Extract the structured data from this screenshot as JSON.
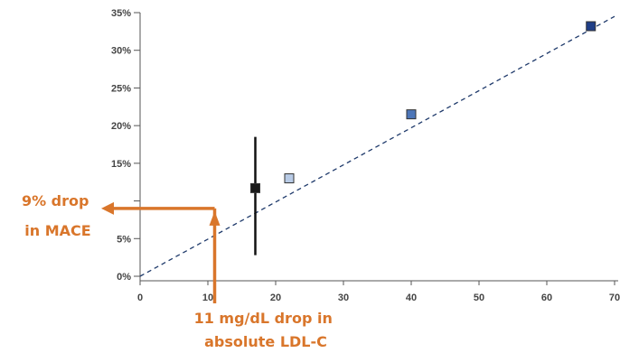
{
  "colors": {
    "accent": "#d9762b",
    "axis": "#555555",
    "trendline": "#1f3a6b",
    "error_bar": "#111111"
  },
  "chart_data": {
    "type": "scatter",
    "title": "",
    "xlabel": "",
    "ylabel": "",
    "xlim": [
      0,
      70
    ],
    "ylim": [
      0,
      35
    ],
    "grid": false,
    "legend": "none",
    "x_ticks": [
      0,
      10,
      20,
      30,
      40,
      50,
      60,
      70
    ],
    "x_tick_labels": [
      "0",
      "10",
      "20",
      "30",
      "40",
      "50",
      "60",
      "70"
    ],
    "y_ticks": [
      0,
      5,
      10,
      15,
      20,
      25,
      30,
      35
    ],
    "y_tick_labels": [
      "0%",
      "5%",
      "",
      "15%",
      "20%",
      "25%",
      "30%",
      "35%"
    ],
    "points": [
      {
        "x": 17,
        "y": 11.7,
        "color": "#1a1a1a",
        "error_low": 2.8,
        "error_high": 18.5
      },
      {
        "x": 22,
        "y": 13.0,
        "color": "#b8cbe6"
      },
      {
        "x": 40,
        "y": 21.5,
        "color": "#4d76b8"
      },
      {
        "x": 66.5,
        "y": 33.2,
        "color": "#1f3e87"
      }
    ],
    "trendline": {
      "x1": 0,
      "y1": 0,
      "x2": 70,
      "y2": 34.5,
      "style": "dashed"
    },
    "annotations": [
      {
        "lines": [
          "9% drop",
          "in MACE"
        ]
      },
      {
        "lines": [
          "11 mg/dL drop in",
          "absolute LDL-C"
        ]
      }
    ],
    "guide_lines": {
      "x": 11,
      "y": 9
    }
  }
}
